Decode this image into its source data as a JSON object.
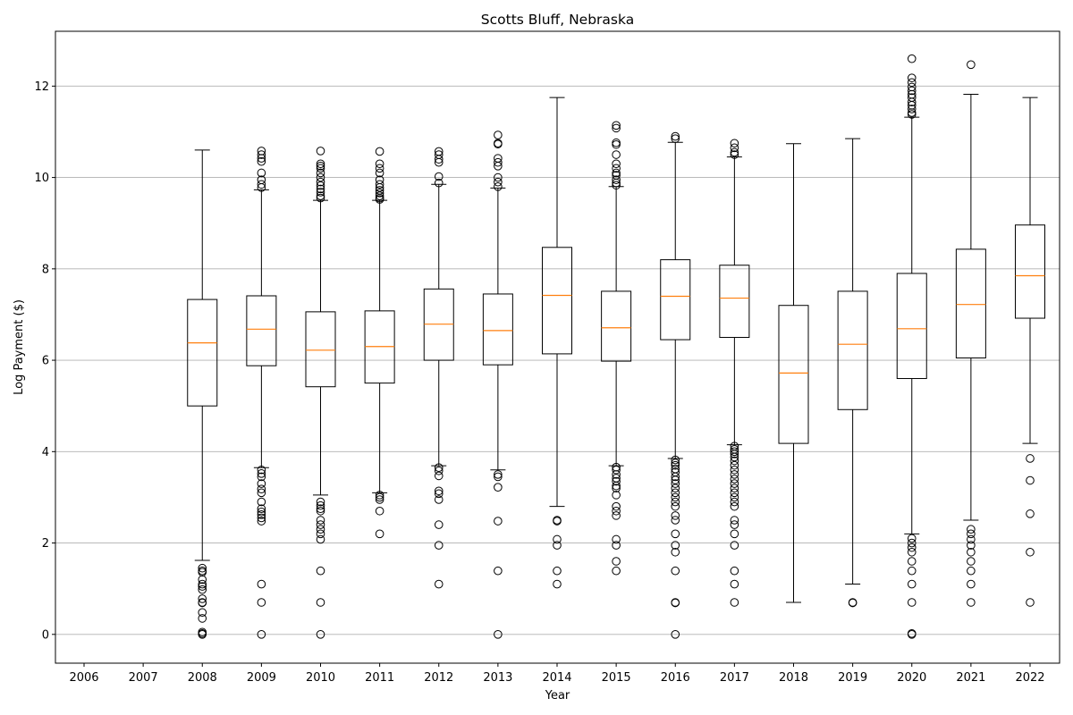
{
  "chart_data": {
    "type": "box",
    "title": "Scotts Bluff, Nebraska",
    "xlabel": "Year",
    "ylabel": "Log Payment ($)",
    "categories": [
      "2006",
      "2007",
      "2008",
      "2009",
      "2010",
      "2011",
      "2012",
      "2013",
      "2014",
      "2015",
      "2016",
      "2017",
      "2018",
      "2019",
      "2020",
      "2021",
      "2022"
    ],
    "ylim": [
      -0.63,
      13.2
    ],
    "yticks": [
      0,
      2,
      4,
      6,
      8,
      10,
      12
    ],
    "grid": "y",
    "colors": {
      "box": "#000000",
      "median": "#ff7f0e",
      "grid": "#b0b0b0"
    },
    "boxes": [
      {
        "year": "2006"
      },
      {
        "year": "2007"
      },
      {
        "year": "2008",
        "whislo": 1.62,
        "q1": 5.0,
        "med": 6.38,
        "q3": 7.33,
        "whishi": 10.6,
        "fliers": [
          1.45,
          1.39,
          1.36,
          1.2,
          1.1,
          1.05,
          0.98,
          0.78,
          0.7,
          0.69,
          0.48,
          0.35,
          0.05,
          0.02,
          0.0
        ]
      },
      {
        "year": "2009",
        "whislo": 3.65,
        "q1": 5.88,
        "med": 6.68,
        "q3": 7.41,
        "whishi": 9.73,
        "fliers": [
          10.58,
          10.5,
          10.42,
          10.35,
          10.1,
          9.95,
          9.85,
          9.78,
          3.6,
          3.52,
          3.45,
          3.3,
          3.18,
          3.1,
          2.9,
          2.75,
          2.68,
          2.62,
          2.55,
          2.48,
          1.1,
          0.7,
          0.0
        ]
      },
      {
        "year": "2010",
        "whislo": 3.05,
        "q1": 5.42,
        "med": 6.22,
        "q3": 7.06,
        "whishi": 9.5,
        "fliers": [
          10.58,
          10.3,
          10.25,
          10.2,
          10.1,
          10.0,
          9.9,
          9.82,
          9.75,
          9.68,
          9.6,
          9.55,
          2.9,
          2.82,
          2.75,
          2.7,
          2.5,
          2.4,
          2.3,
          2.2,
          2.08,
          1.39,
          0.7,
          0.0
        ]
      },
      {
        "year": "2011",
        "whislo": 3.1,
        "q1": 5.5,
        "med": 6.3,
        "q3": 7.08,
        "whishi": 9.5,
        "fliers": [
          10.57,
          10.3,
          10.2,
          10.1,
          9.95,
          9.85,
          9.78,
          9.72,
          9.66,
          9.6,
          9.55,
          9.52,
          3.05,
          3.0,
          2.95,
          2.7,
          2.2
        ]
      },
      {
        "year": "2012",
        "whislo": 3.69,
        "q1": 6.0,
        "med": 6.79,
        "q3": 7.56,
        "whishi": 9.85,
        "fliers": [
          10.57,
          10.5,
          10.4,
          10.33,
          10.02,
          9.88,
          3.65,
          3.58,
          3.47,
          3.14,
          3.08,
          2.95,
          2.4,
          1.95,
          1.1
        ]
      },
      {
        "year": "2013",
        "whislo": 3.6,
        "q1": 5.9,
        "med": 6.65,
        "q3": 7.45,
        "whishi": 9.77,
        "fliers": [
          10.93,
          10.75,
          10.73,
          10.42,
          10.33,
          10.25,
          10.0,
          9.9,
          9.8,
          3.5,
          3.45,
          3.22,
          2.48,
          1.39,
          0.0
        ]
      },
      {
        "year": "2014",
        "whislo": 2.8,
        "q1": 6.14,
        "med": 7.42,
        "q3": 8.47,
        "whishi": 11.75,
        "fliers": [
          2.5,
          2.48,
          2.08,
          1.95,
          1.39,
          1.1
        ]
      },
      {
        "year": "2015",
        "whislo": 3.69,
        "q1": 5.98,
        "med": 6.71,
        "q3": 7.51,
        "whishi": 9.8,
        "fliers": [
          11.14,
          11.08,
          10.76,
          10.72,
          10.5,
          10.3,
          10.2,
          10.1,
          10.05,
          9.95,
          9.88,
          9.83,
          3.66,
          3.6,
          3.5,
          3.42,
          3.35,
          3.25,
          3.2,
          3.05,
          2.8,
          2.7,
          2.6,
          2.08,
          1.95,
          1.6,
          1.39
        ]
      },
      {
        "year": "2016",
        "whislo": 3.85,
        "q1": 6.45,
        "med": 7.4,
        "q3": 8.2,
        "whishi": 10.77,
        "fliers": [
          10.9,
          10.85,
          3.82,
          3.75,
          3.7,
          3.62,
          3.55,
          3.45,
          3.38,
          3.3,
          3.2,
          3.1,
          3.0,
          2.9,
          2.8,
          2.6,
          2.5,
          2.2,
          1.95,
          1.8,
          1.39,
          0.7,
          0.69,
          0.0
        ]
      },
      {
        "year": "2017",
        "whislo": 4.15,
        "q1": 6.5,
        "med": 7.36,
        "q3": 8.08,
        "whishi": 10.45,
        "fliers": [
          10.75,
          10.65,
          10.55,
          10.5,
          4.12,
          4.05,
          4.0,
          3.95,
          3.88,
          3.8,
          3.7,
          3.6,
          3.5,
          3.4,
          3.3,
          3.2,
          3.1,
          3.0,
          2.9,
          2.8,
          2.5,
          2.4,
          2.2,
          1.95,
          1.39,
          1.1,
          0.7
        ]
      },
      {
        "year": "2018",
        "whislo": 0.7,
        "q1": 4.18,
        "med": 5.72,
        "q3": 7.2,
        "whishi": 10.74,
        "fliers": []
      },
      {
        "year": "2019",
        "whislo": 1.1,
        "q1": 4.92,
        "med": 6.35,
        "q3": 7.51,
        "whishi": 10.85,
        "fliers": [
          0.7,
          0.69
        ]
      },
      {
        "year": "2020",
        "whislo": 2.2,
        "q1": 5.6,
        "med": 6.69,
        "q3": 7.9,
        "whishi": 11.32,
        "fliers": [
          12.6,
          12.18,
          12.08,
          11.98,
          11.9,
          11.82,
          11.75,
          11.65,
          11.58,
          11.5,
          11.42,
          11.38,
          2.1,
          2.0,
          1.9,
          1.8,
          1.6,
          1.39,
          1.1,
          0.7,
          0.02,
          0.0
        ]
      },
      {
        "year": "2021",
        "whislo": 2.5,
        "q1": 6.05,
        "med": 7.22,
        "q3": 8.43,
        "whishi": 11.82,
        "fliers": [
          12.47,
          2.3,
          2.2,
          2.08,
          1.95,
          1.8,
          1.6,
          1.39,
          1.1,
          0.7
        ]
      },
      {
        "year": "2022",
        "whislo": 4.18,
        "q1": 6.92,
        "med": 7.85,
        "q3": 8.96,
        "whishi": 11.75,
        "fliers": [
          3.85,
          3.37,
          2.64,
          1.8,
          0.7
        ]
      }
    ]
  }
}
